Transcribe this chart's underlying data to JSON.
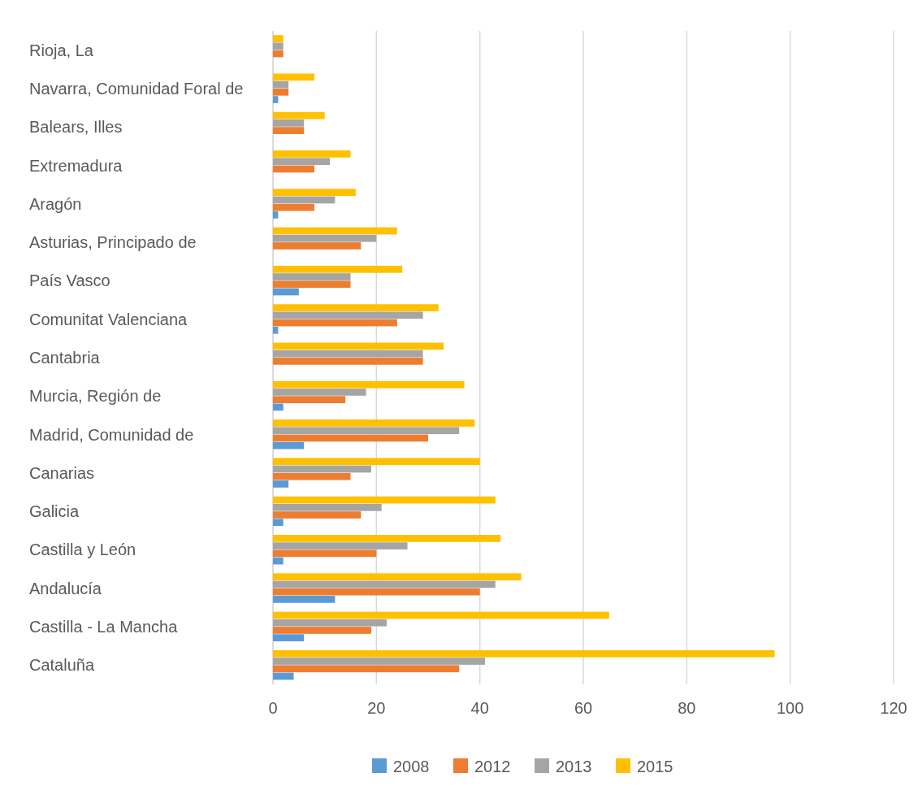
{
  "chart_data": {
    "type": "bar",
    "orientation": "horizontal",
    "categories": [
      "Rioja, La",
      "Navarra, Comunidad Foral de",
      "Balears, Illes",
      "Extremadura",
      "Aragón",
      "Asturias, Principado de",
      "País Vasco",
      "Comunitat Valenciana",
      "Cantabria",
      "Murcia, Región de",
      "Madrid, Comunidad de",
      "Canarias",
      "Galicia",
      "Castilla y León",
      "Andalucía",
      "Castilla - La Mancha",
      "Cataluña"
    ],
    "series": [
      {
        "name": "2008",
        "color": "#5b9bd5",
        "values": [
          0,
          1,
          0,
          0,
          1,
          0,
          5,
          1,
          0,
          2,
          6,
          3,
          2,
          2,
          12,
          6,
          4
        ]
      },
      {
        "name": "2012",
        "color": "#ed7d31",
        "values": [
          2,
          3,
          6,
          8,
          8,
          17,
          15,
          24,
          29,
          14,
          30,
          15,
          17,
          20,
          40,
          19,
          36
        ]
      },
      {
        "name": "2013",
        "color": "#a5a5a5",
        "values": [
          2,
          3,
          6,
          11,
          12,
          20,
          15,
          29,
          29,
          18,
          36,
          19,
          21,
          26,
          43,
          22,
          41
        ]
      },
      {
        "name": "2015",
        "color": "#ffc000",
        "values": [
          2,
          8,
          10,
          15,
          16,
          24,
          25,
          32,
          33,
          37,
          39,
          40,
          43,
          44,
          48,
          65,
          97
        ]
      }
    ],
    "xlim": [
      0,
      120
    ],
    "xticks": [
      0,
      20,
      40,
      60,
      80,
      100,
      120
    ],
    "grid": "x",
    "legend": "bottom"
  }
}
